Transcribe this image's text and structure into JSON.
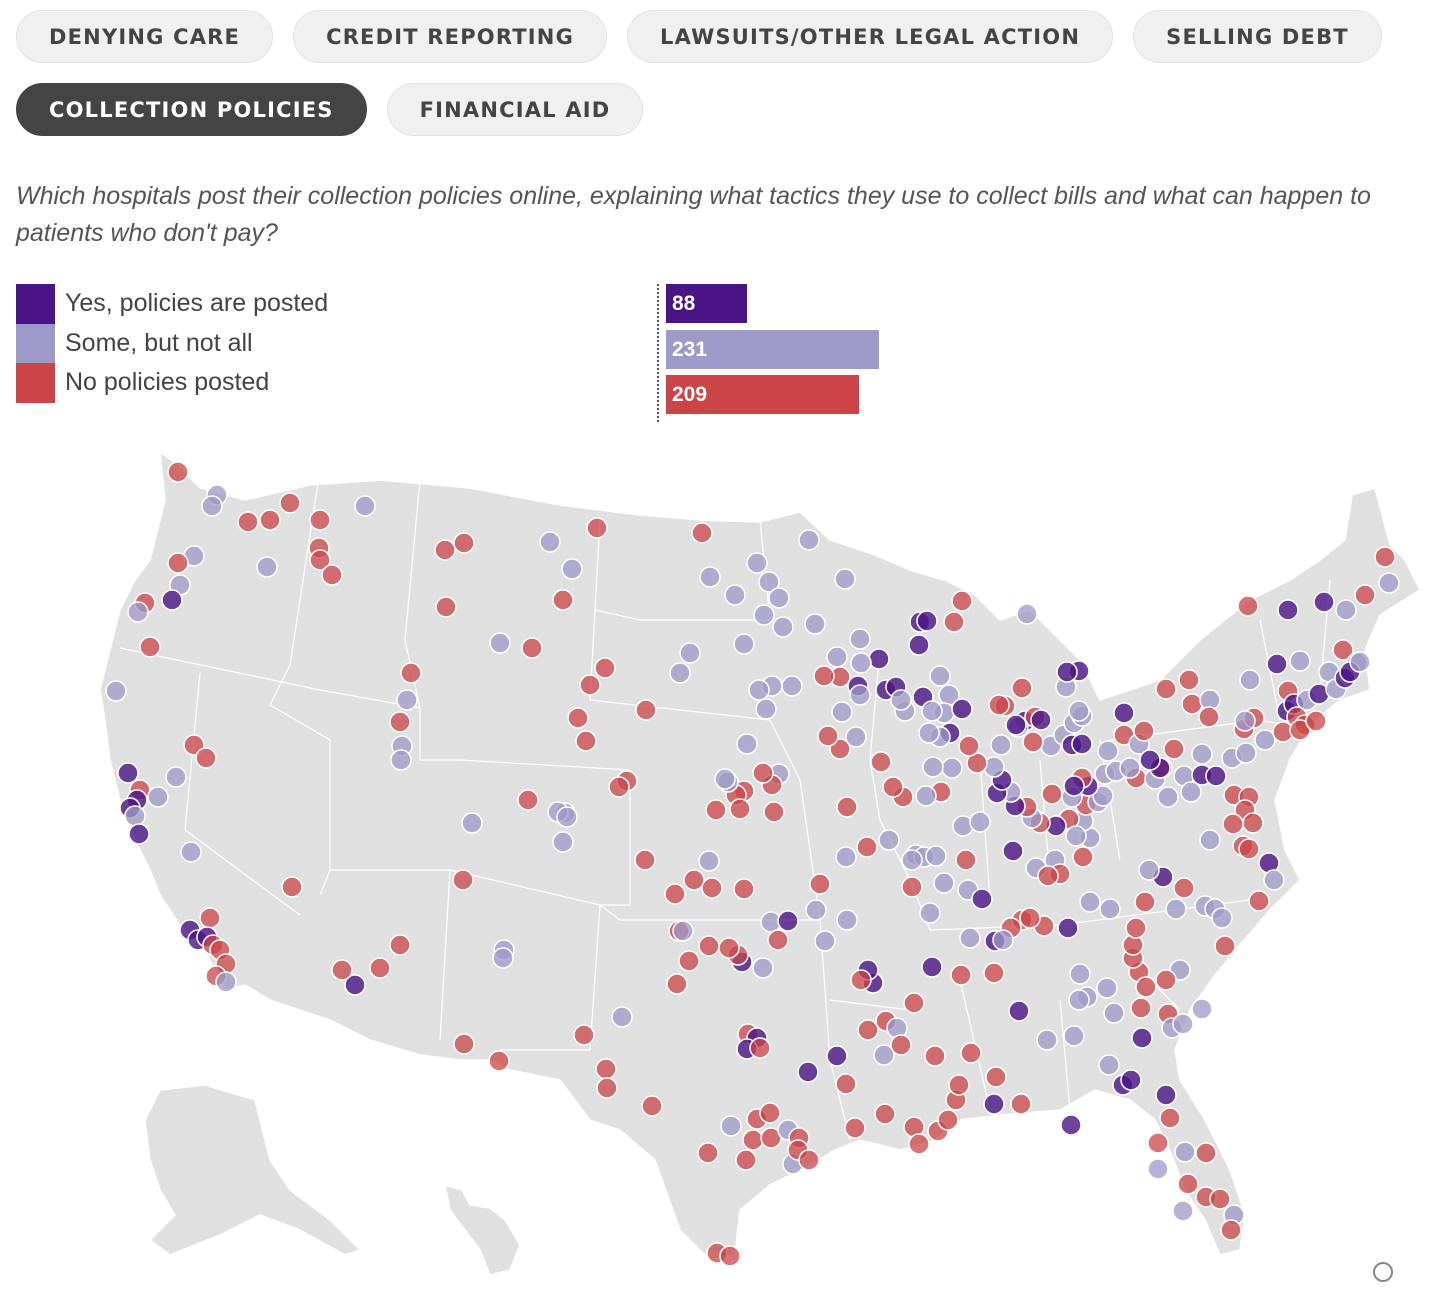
{
  "tabs": [
    [
      {
        "label": "DENYING CARE",
        "active": false
      },
      {
        "label": "CREDIT REPORTING",
        "active": false
      },
      {
        "label": "LAWSUITS/OTHER LEGAL ACTION",
        "active": false
      },
      {
        "label": "SELLING DEBT",
        "active": false
      }
    ],
    [
      {
        "label": "COLLECTION POLICIES",
        "active": true
      },
      {
        "label": "FINANCIAL AID",
        "active": false
      }
    ]
  ],
  "question": "Which hospitals post their collection policies online, explaining what tactics they use to collect bills and what can happen to patients who don't pay?",
  "legend": [
    {
      "key": "yes",
      "label": "Yes, policies are posted",
      "color": "#4a1486"
    },
    {
      "key": "some",
      "label": "Some, but not all",
      "color": "#9e9ac8"
    },
    {
      "key": "no",
      "label": "No policies posted",
      "color": "#cb4448"
    }
  ],
  "counts": {
    "yes": 88,
    "some": 231,
    "no": 209
  },
  "map": {
    "land_color": "#e0e0e0",
    "border_color": "#ffffff"
  }
}
